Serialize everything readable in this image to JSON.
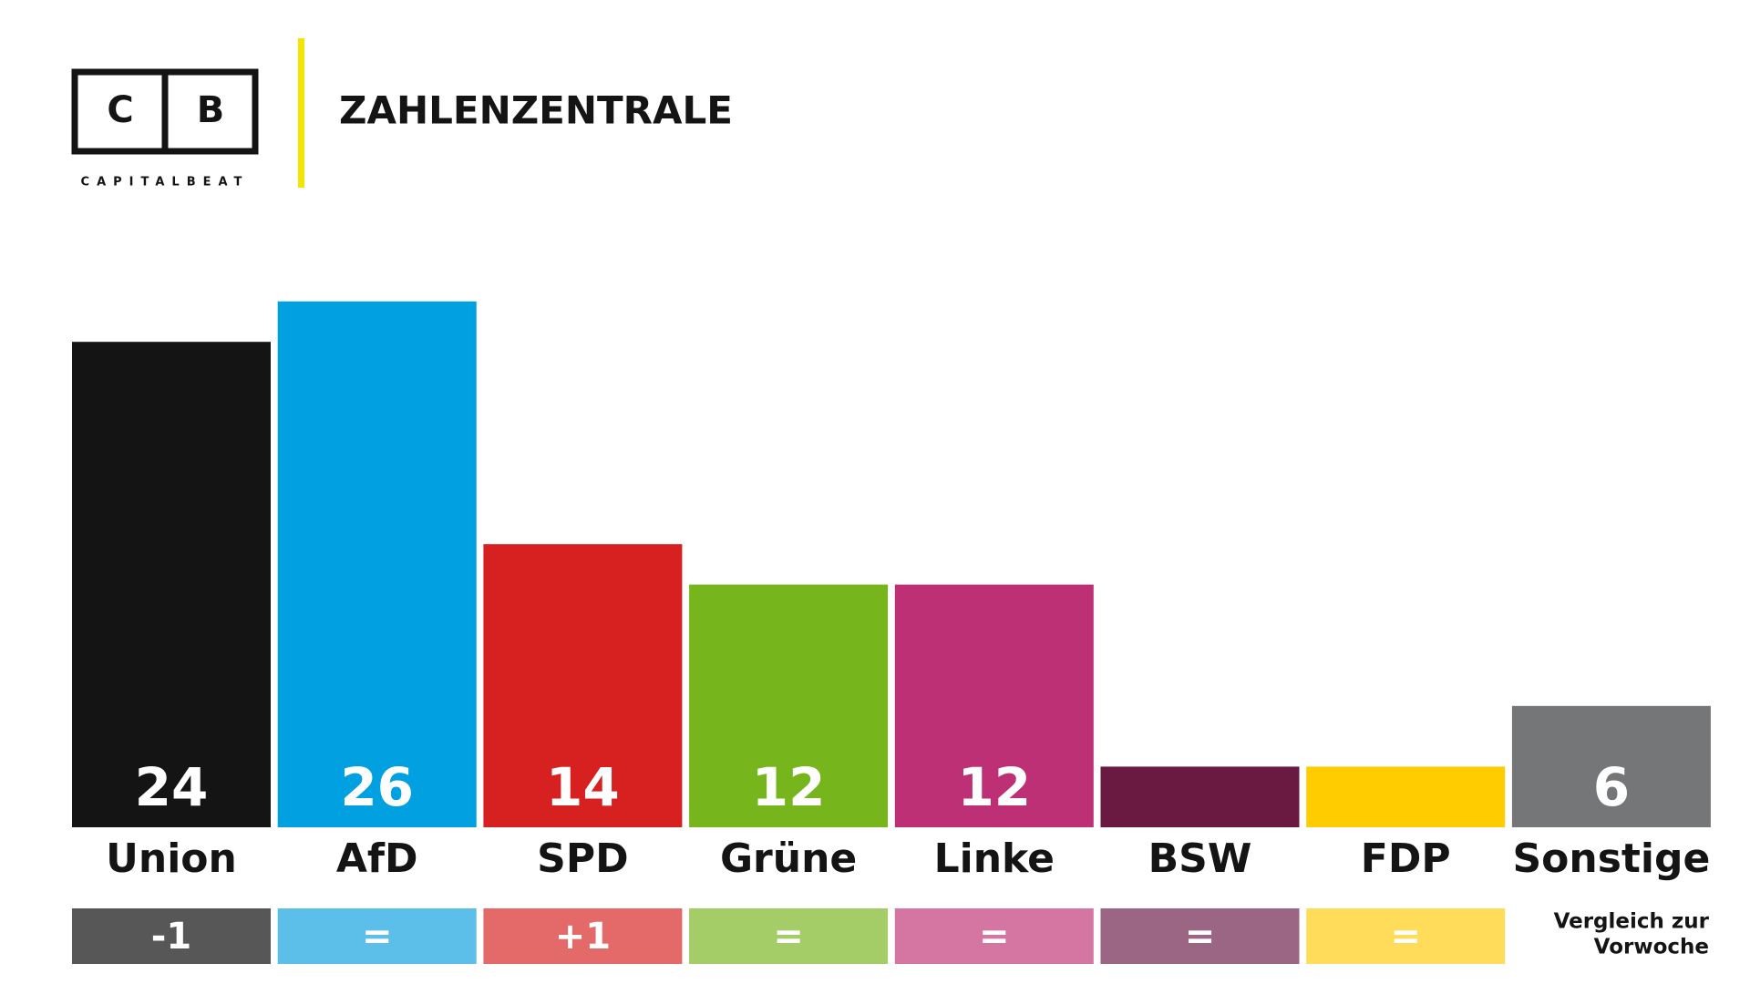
{
  "header": {
    "logo_left": "C",
    "logo_right": "B",
    "brand": "CAPITALBEAT",
    "title": "ZAHLENZENTRALE"
  },
  "chart_data": {
    "type": "bar",
    "categories": [
      "Union",
      "AfD",
      "SPD",
      "Grüne",
      "Linke",
      "BSW",
      "FDP",
      "Sonstige"
    ],
    "values": [
      24,
      26,
      14,
      12,
      12,
      3,
      3,
      6
    ],
    "colors": [
      "#141414",
      "#00a0e1",
      "#d72020",
      "#76b51b",
      "#bd3075",
      "#6a1a40",
      "#ffcc00",
      "#757677"
    ],
    "changes": [
      "-1",
      "=",
      "+1",
      "=",
      "=",
      "=",
      "=",
      null
    ],
    "change_colors": [
      "#575757",
      "#5cbfea",
      "#e46a6a",
      "#a4cd68",
      "#d475a2",
      "#9b6683",
      "#ffdd5a",
      null
    ],
    "change_note": [
      "Vergleich zur",
      "Vorwoche"
    ]
  }
}
